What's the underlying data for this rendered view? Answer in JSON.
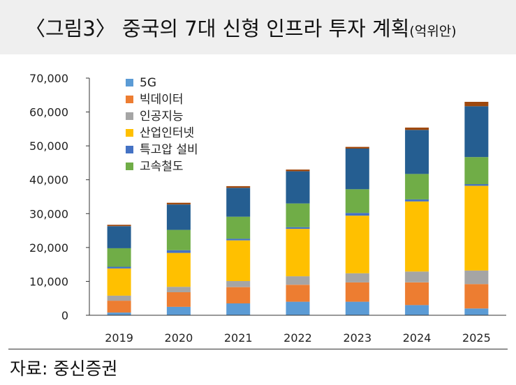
{
  "header": {
    "title": "〈그림3〉 중국의 7대 신형 인프라 투자 계획",
    "unit": "(억위안)"
  },
  "footer": {
    "source": "자료: 중신증권"
  },
  "chart_data": {
    "type": "bar",
    "stacked": true,
    "categories": [
      "2019",
      "2020",
      "2021",
      "2022",
      "2023",
      "2024",
      "2025"
    ],
    "ylim": [
      0,
      70000
    ],
    "yticks": [
      0,
      10000,
      20000,
      30000,
      40000,
      50000,
      60000,
      70000
    ],
    "ytick_labels": [
      "0",
      "10,000",
      "20,000",
      "30,000",
      "40,000",
      "50,000",
      "60,000",
      "70,000"
    ],
    "legend_position": "top-left",
    "series": [
      {
        "name": "5G",
        "color": "#5b9bd5",
        "values": [
          800,
          2500,
          3500,
          4000,
          4000,
          3000,
          2000
        ]
      },
      {
        "name": "빅데이터",
        "color": "#ed7d31",
        "values": [
          3500,
          4300,
          4800,
          5000,
          5700,
          6700,
          7200
        ]
      },
      {
        "name": "인공지능",
        "color": "#a5a5a5",
        "values": [
          1500,
          1600,
          1800,
          2500,
          2700,
          3200,
          4000
        ]
      },
      {
        "name": "산업인터넷",
        "color": "#ffc000",
        "values": [
          8000,
          10000,
          12000,
          14000,
          17000,
          20700,
          25000
        ]
      },
      {
        "name": "특고압 설비",
        "color": "#4472c4",
        "values": [
          500,
          800,
          500,
          500,
          800,
          600,
          500
        ]
      },
      {
        "name": "고속철도",
        "color": "#70ad47",
        "values": [
          5500,
          6000,
          6500,
          7000,
          7000,
          7500,
          8000
        ]
      },
      {
        "name": "",
        "color": "#255e91",
        "values": [
          6500,
          7500,
          8500,
          9500,
          12000,
          13000,
          15000
        ]
      },
      {
        "name": "",
        "color": "#9e480e",
        "values": [
          400,
          500,
          500,
          500,
          500,
          700,
          1300
        ]
      }
    ]
  }
}
